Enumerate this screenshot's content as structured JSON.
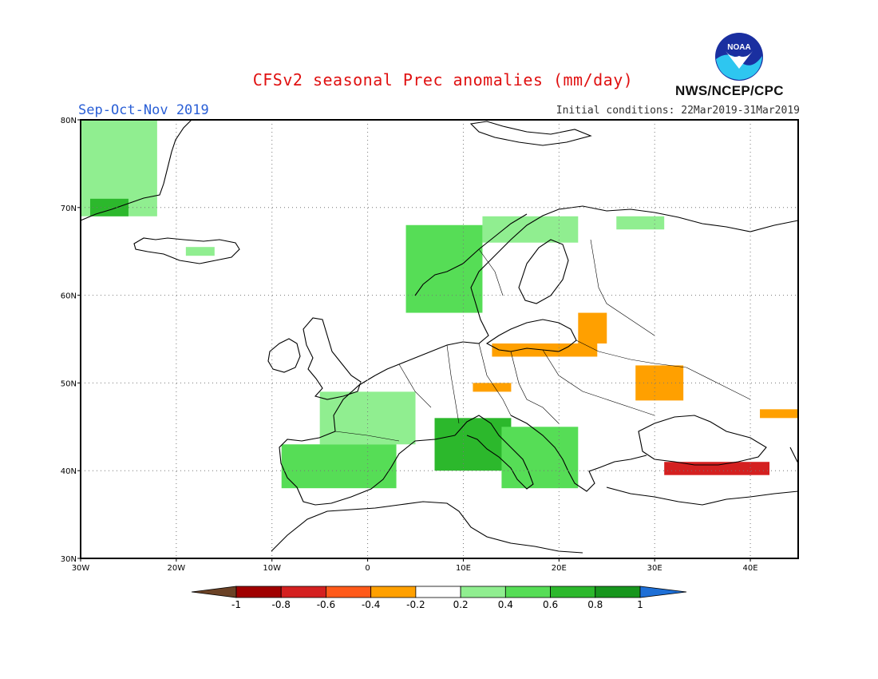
{
  "header": {
    "title": "CFSv2 seasonal Prec anomalies (mm/day)",
    "season": "Sep-Oct-Nov 2019",
    "initial_conditions": "Initial conditions: 22Mar2019-31Mar2019",
    "agency": "NWS/NCEP/CPC",
    "logo_text": "NOAA"
  },
  "map": {
    "lon_range": [
      -30,
      45
    ],
    "lat_range": [
      30,
      80
    ],
    "lon_ticks": [
      {
        "value": -30,
        "label": "30W"
      },
      {
        "value": -20,
        "label": "20W"
      },
      {
        "value": -10,
        "label": "10W"
      },
      {
        "value": 0,
        "label": "0"
      },
      {
        "value": 10,
        "label": "10E"
      },
      {
        "value": 20,
        "label": "20E"
      },
      {
        "value": 30,
        "label": "30E"
      },
      {
        "value": 40,
        "label": "40E"
      }
    ],
    "lat_ticks": [
      {
        "value": 30,
        "label": "30N"
      },
      {
        "value": 40,
        "label": "40N"
      },
      {
        "value": 50,
        "label": "50N"
      },
      {
        "value": 60,
        "label": "60N"
      },
      {
        "value": 70,
        "label": "70N"
      },
      {
        "value": 80,
        "label": "80N"
      }
    ],
    "gridlines": "dotted",
    "anomaly_regions": [
      {
        "region": "Greenland east coast",
        "lon": [
          -30,
          -22
        ],
        "lat": [
          69,
          80
        ],
        "value": 0.3
      },
      {
        "region": "Greenland east coast",
        "lon": [
          -29,
          -25
        ],
        "lat": [
          69,
          71
        ],
        "value": 0.7
      },
      {
        "region": "Iceland",
        "lon": [
          -19,
          -16
        ],
        "lat": [
          64.5,
          65.5
        ],
        "value": 0.3
      },
      {
        "region": "Western Norway",
        "lon": [
          4,
          12
        ],
        "lat": [
          58,
          68
        ],
        "value": 0.4
      },
      {
        "region": "Northern Scandinavia",
        "lon": [
          12,
          22
        ],
        "lat": [
          66,
          69
        ],
        "value": 0.3
      },
      {
        "region": "Kola",
        "lon": [
          26,
          31
        ],
        "lat": [
          67.5,
          69
        ],
        "value": 0.3
      },
      {
        "region": "France",
        "lon": [
          -5,
          5
        ],
        "lat": [
          43,
          49
        ],
        "value": 0.3
      },
      {
        "region": "Iberia",
        "lon": [
          -9,
          3
        ],
        "lat": [
          38,
          43
        ],
        "value": 0.4
      },
      {
        "region": "Italy",
        "lon": [
          7,
          15
        ],
        "lat": [
          40,
          46
        ],
        "value": 0.6
      },
      {
        "region": "Balkans",
        "lon": [
          14,
          22
        ],
        "lat": [
          38,
          45
        ],
        "value": 0.5
      },
      {
        "region": "Southern Baltic",
        "lon": [
          13,
          24
        ],
        "lat": [
          53,
          54.5
        ],
        "value": -0.3
      },
      {
        "region": "Gulf of Riga",
        "lon": [
          22,
          25
        ],
        "lat": [
          54.5,
          58
        ],
        "value": -0.3
      },
      {
        "region": "Central Europe",
        "lon": [
          11,
          15
        ],
        "lat": [
          49,
          50
        ],
        "value": -0.3
      },
      {
        "region": "Ukraine",
        "lon": [
          28,
          33
        ],
        "lat": [
          48,
          52
        ],
        "value": -0.3
      },
      {
        "region": "Northern Turkey",
        "lon": [
          31,
          42
        ],
        "lat": [
          39.5,
          41
        ],
        "value": -0.7
      },
      {
        "region": "Caucasus",
        "lon": [
          41,
          45
        ],
        "lat": [
          46,
          47
        ],
        "value": -0.3
      }
    ]
  },
  "colorbar": {
    "labels": [
      "-1",
      "-0.8",
      "-0.6",
      "-0.4",
      "-0.2",
      "0.2",
      "0.4",
      "0.6",
      "0.8",
      "1"
    ],
    "colors": [
      "#6b4226",
      "#a00000",
      "#d42020",
      "#ff5a1a",
      "#ffa000",
      "#ffffff",
      "#90ee90",
      "#56dd56",
      "#2cb82c",
      "#17961d",
      "#1e6fd6"
    ]
  }
}
